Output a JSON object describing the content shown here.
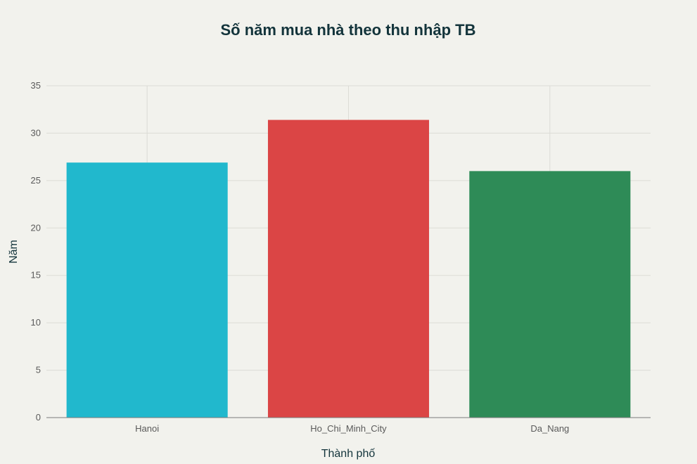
{
  "chart_data": {
    "type": "bar",
    "title": "Số năm mua nhà theo thu nhập TB",
    "xlabel": "Thành phố",
    "ylabel": "Năm",
    "categories": [
      "Hanoi",
      "Ho_Chi_Minh_City",
      "Da_Nang"
    ],
    "values": [
      26.9,
      31.4,
      26.0
    ],
    "colors": [
      "#21b8cd",
      "#db4545",
      "#2e8b57"
    ],
    "ylim": [
      0,
      35
    ],
    "yticks": [
      0,
      5,
      10,
      15,
      20,
      25,
      30,
      35
    ],
    "grid": true,
    "legend": "none"
  }
}
